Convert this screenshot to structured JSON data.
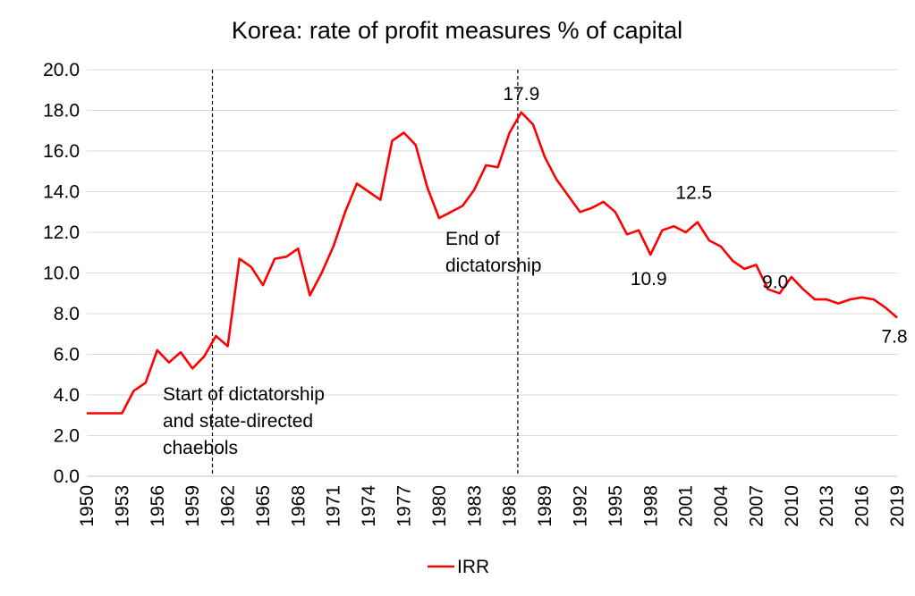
{
  "chart_data": {
    "type": "line",
    "title": "Korea: rate of profit measures % of capital",
    "xlabel": "",
    "ylabel": "",
    "ylim": [
      0,
      20
    ],
    "yticks": [
      "0.0",
      "2.0",
      "4.0",
      "6.0",
      "8.0",
      "10.0",
      "12.0",
      "14.0",
      "16.0",
      "18.0",
      "20.0"
    ],
    "xticks": [
      "1950",
      "1953",
      "1956",
      "1959",
      "1962",
      "1965",
      "1968",
      "1971",
      "1974",
      "1977",
      "1980",
      "1983",
      "1986",
      "1989",
      "1992",
      "1995",
      "1998",
      "2001",
      "2004",
      "2007",
      "2010",
      "2013",
      "2016",
      "2019"
    ],
    "grid": "horizontal",
    "legend": "bottom",
    "color": "#ff0000",
    "x": [
      1950,
      1951,
      1952,
      1953,
      1954,
      1955,
      1956,
      1957,
      1958,
      1959,
      1960,
      1961,
      1962,
      1963,
      1964,
      1965,
      1966,
      1967,
      1968,
      1969,
      1970,
      1971,
      1972,
      1973,
      1974,
      1975,
      1976,
      1977,
      1978,
      1979,
      1980,
      1981,
      1982,
      1983,
      1984,
      1985,
      1986,
      1987,
      1988,
      1989,
      1990,
      1991,
      1992,
      1993,
      1994,
      1995,
      1996,
      1997,
      1998,
      1999,
      2000,
      2001,
      2002,
      2003,
      2004,
      2005,
      2006,
      2007,
      2008,
      2009,
      2010,
      2011,
      2012,
      2013,
      2014,
      2015,
      2016,
      2017,
      2018,
      2019
    ],
    "series": [
      {
        "name": "IRR",
        "values": [
          3.1,
          3.1,
          3.1,
          3.1,
          4.2,
          4.6,
          6.2,
          5.6,
          6.1,
          5.3,
          5.9,
          6.9,
          6.4,
          10.7,
          10.3,
          9.4,
          10.7,
          10.8,
          11.2,
          8.9,
          10.0,
          11.3,
          13.0,
          14.4,
          14.0,
          13.6,
          16.5,
          16.9,
          16.3,
          14.2,
          12.7,
          13.0,
          13.3,
          14.1,
          15.3,
          15.2,
          16.9,
          17.9,
          17.3,
          15.7,
          14.6,
          13.8,
          13.0,
          13.2,
          13.5,
          13.0,
          11.9,
          12.1,
          10.9,
          12.1,
          12.3,
          12.0,
          12.5,
          11.6,
          11.3,
          10.6,
          10.2,
          10.4,
          9.2,
          9.0,
          9.8,
          9.2,
          8.7,
          8.7,
          8.5,
          8.7,
          8.8,
          8.7,
          8.3,
          7.8
        ]
      }
    ],
    "data_labels": [
      "17.9",
      "12.5",
      "10.9",
      "9.0",
      "7.8"
    ],
    "annotations": [
      {
        "lines": [
          "Start of dictatorship",
          "and state-directed",
          "chaebols"
        ]
      },
      {
        "lines": [
          "End of",
          "dictatorship"
        ]
      }
    ]
  }
}
